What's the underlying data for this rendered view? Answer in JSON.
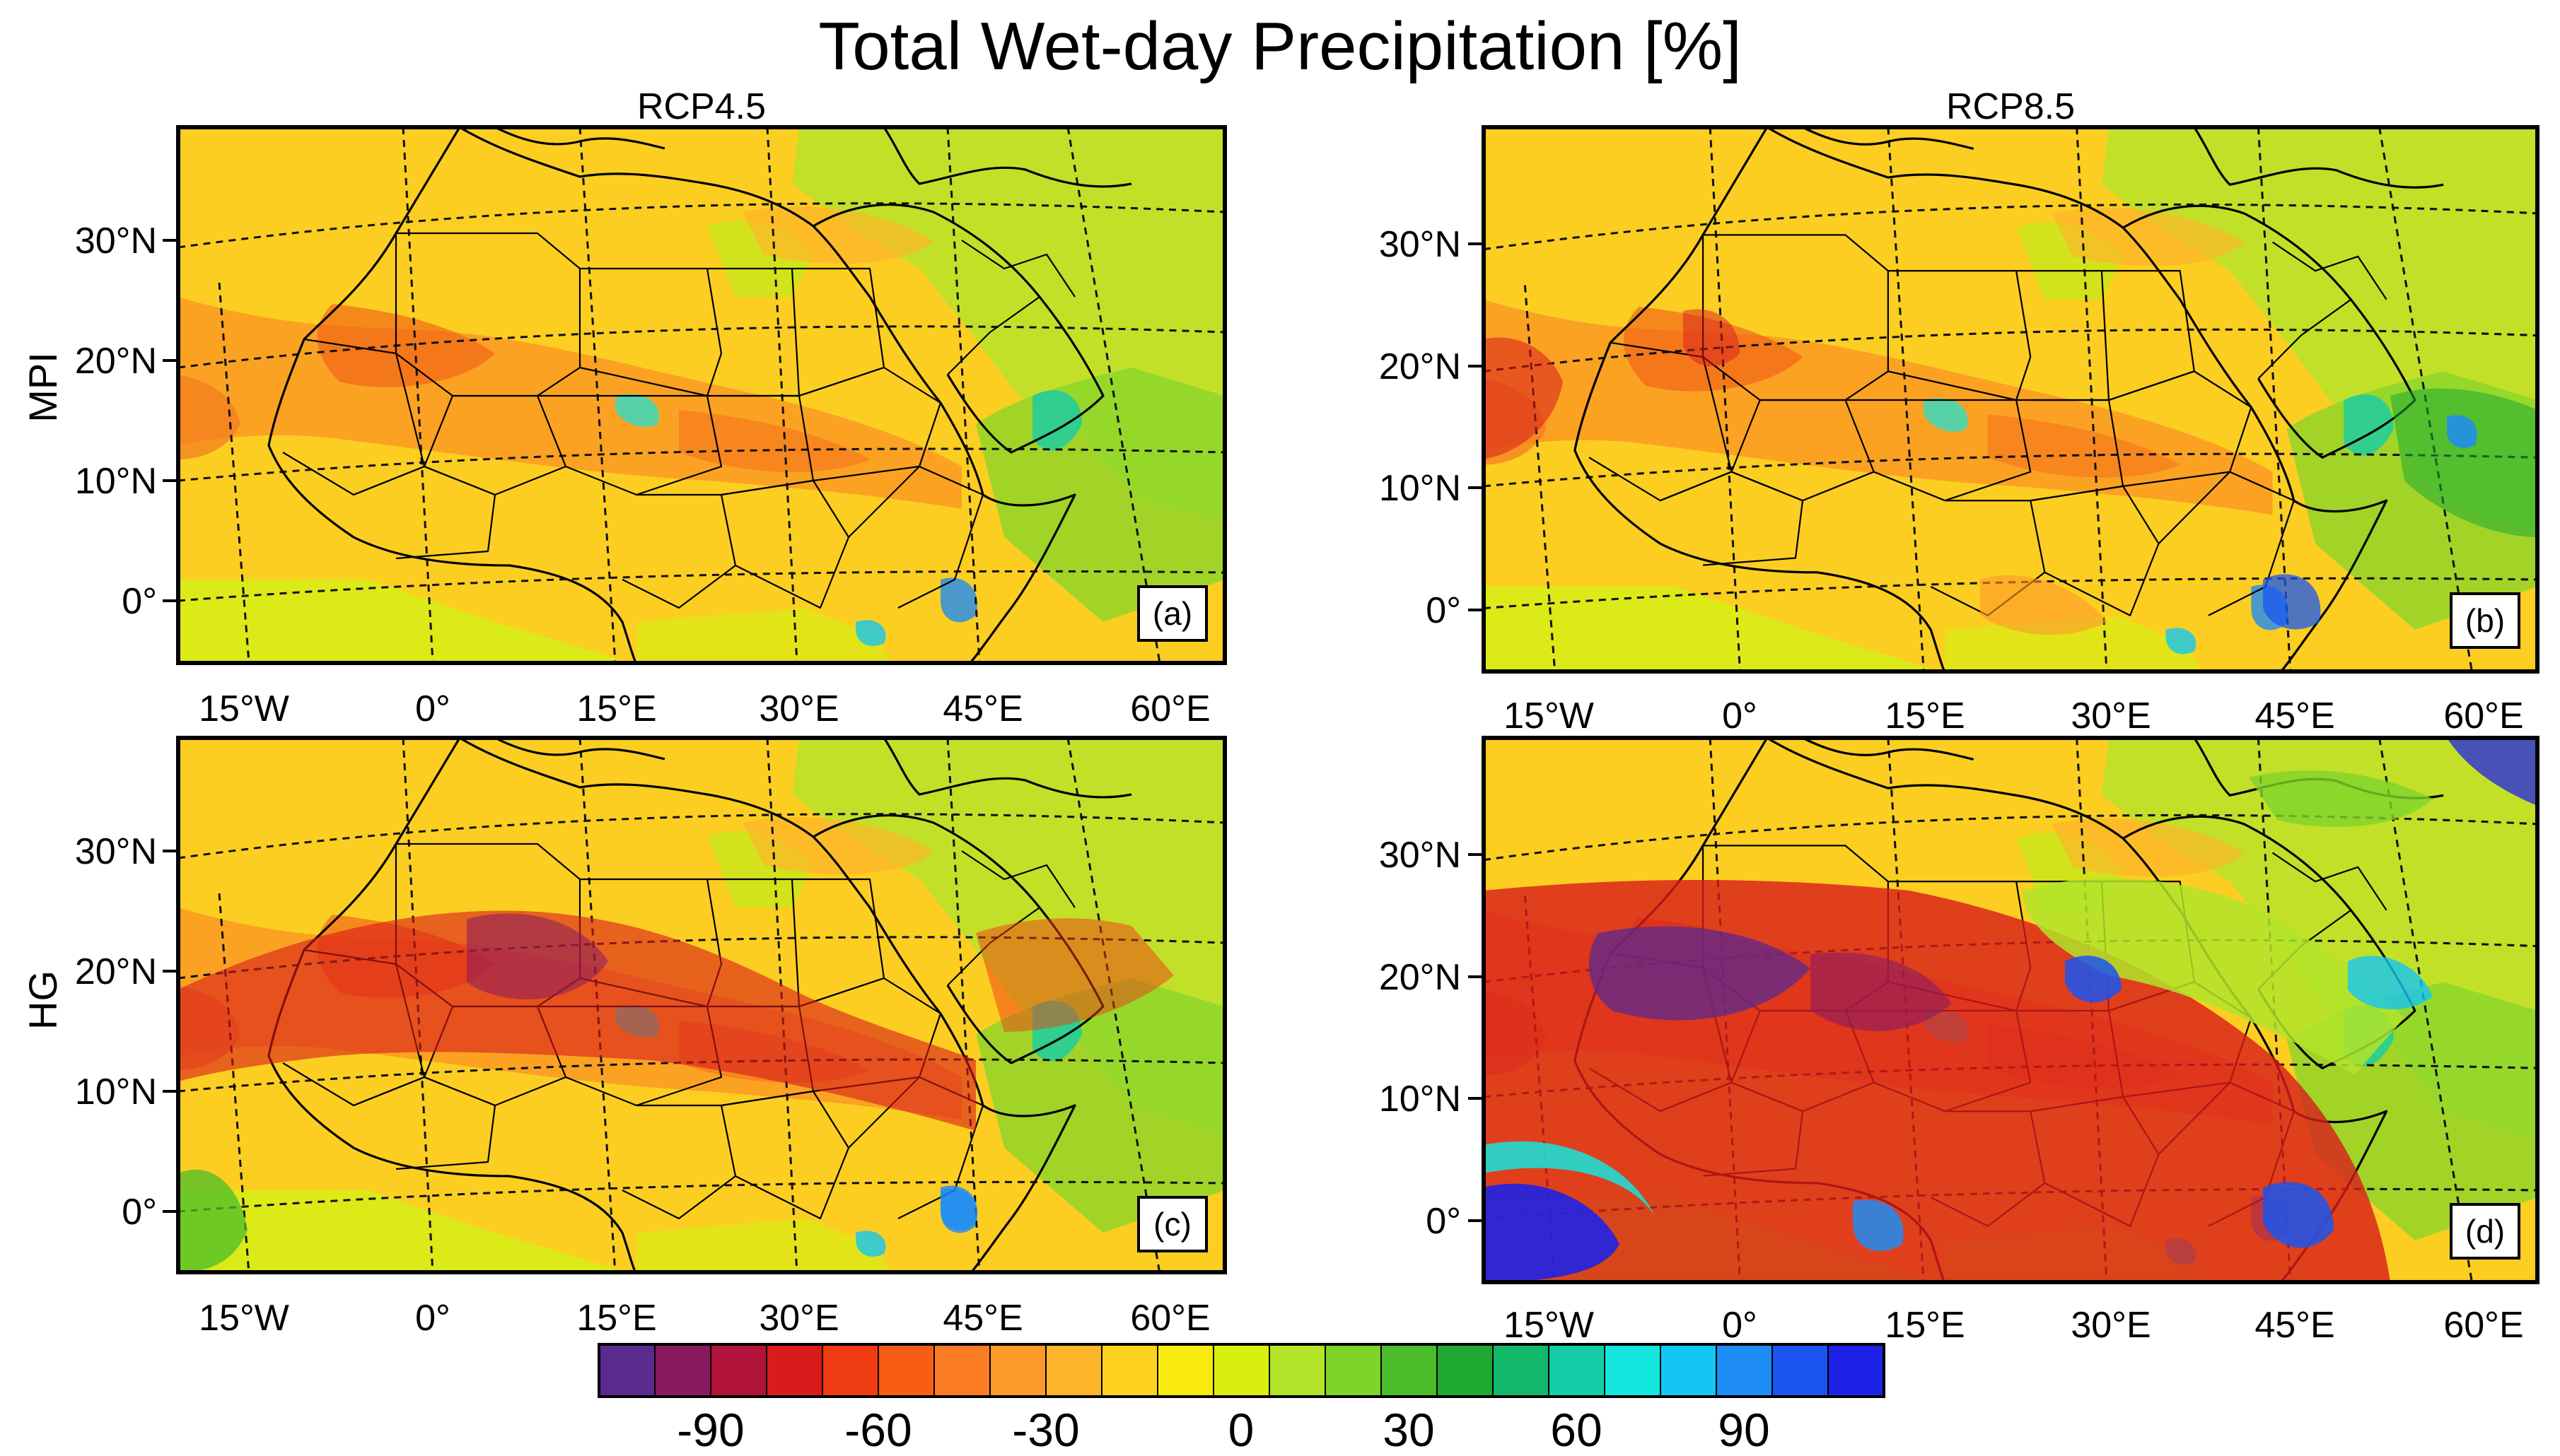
{
  "title": "Total Wet-day Precipitation [%]",
  "columns": [
    "RCP4.5",
    "RCP8.5"
  ],
  "rows": [
    "MPI",
    "HG"
  ],
  "panels": [
    {
      "label": "(a)",
      "row": "MPI",
      "scenario": "RCP4.5"
    },
    {
      "label": "(b)",
      "row": "MPI",
      "scenario": "RCP8.5"
    },
    {
      "label": "(c)",
      "row": "HG",
      "scenario": "RCP4.5"
    },
    {
      "label": "(d)",
      "row": "HG",
      "scenario": "RCP8.5"
    }
  ],
  "map": {
    "lat_labels": [
      "30°N",
      "20°N",
      "10°N",
      "0°"
    ],
    "lon_labels": [
      "15°W",
      "0°",
      "15°E",
      "30°E",
      "45°E",
      "60°E"
    ]
  },
  "colorbar": {
    "colors": [
      "#5b2a8f",
      "#8a1a5f",
      "#b0143a",
      "#d81b1b",
      "#ee3b12",
      "#f75e14",
      "#fb7c22",
      "#fd9a2a",
      "#fdb52a",
      "#fdd21f",
      "#f8ea0c",
      "#d9ef10",
      "#b2e42a",
      "#7fd32a",
      "#4bbd2a",
      "#1ea932",
      "#11b86a",
      "#15cca8",
      "#14e5de",
      "#14c7f2",
      "#1e8cf5",
      "#1a55f0",
      "#1e22e6"
    ],
    "labels": [
      "-90",
      "-60",
      "-30",
      "0",
      "30",
      "60",
      "90"
    ]
  }
}
